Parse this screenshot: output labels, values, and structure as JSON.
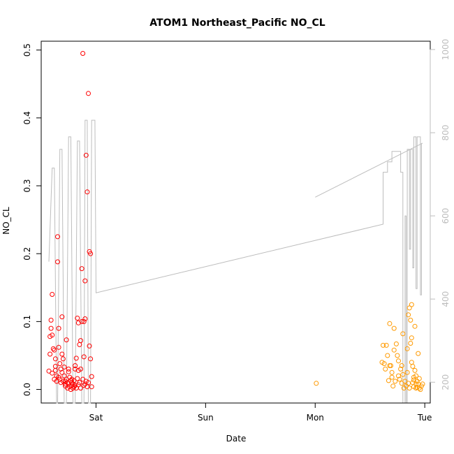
{
  "chart_data": {
    "type": "scatter",
    "title": "ATOM1 Northeast_Pacific NO_CL",
    "xlabel": "Date",
    "ylabel": "NO_CL",
    "x_ticks": [
      "Sat",
      "Sun",
      "Mon",
      "Tue"
    ],
    "x_tick_positions_days": [
      1,
      2,
      3,
      4
    ],
    "x_range_days": [
      0.5,
      4.05
    ],
    "ylim": [
      -0.02,
      0.513
    ],
    "y_ticks": [
      0.0,
      0.1,
      0.2,
      0.3,
      0.4,
      0.5
    ],
    "y_tick_labels": [
      "0.0",
      "0.1",
      "0.2",
      "0.3",
      "0.4",
      "0.5"
    ],
    "y2_lim_reversed": [
      1020,
      150
    ],
    "y2_ticks": [
      200,
      400,
      600,
      800,
      1000
    ],
    "grid": false,
    "series": [
      {
        "color": "#ff0000",
        "marker": "open-circle",
        "points": [
          [
            0.57,
            0.027
          ],
          [
            0.58,
            0.052
          ],
          [
            0.59,
            0.09
          ],
          [
            0.6,
            0.14
          ],
          [
            0.6,
            0.08
          ],
          [
            0.61,
            0.06
          ],
          [
            0.62,
            0.058
          ],
          [
            0.62,
            0.015
          ],
          [
            0.63,
            0.045
          ],
          [
            0.63,
            0.028
          ],
          [
            0.64,
            0.012
          ],
          [
            0.64,
            0.02
          ],
          [
            0.65,
            0.225
          ],
          [
            0.65,
            0.188
          ],
          [
            0.66,
            0.09
          ],
          [
            0.66,
            0.062
          ],
          [
            0.67,
            0.015
          ],
          [
            0.67,
            0.038
          ],
          [
            0.68,
            0.03
          ],
          [
            0.68,
            0.01
          ],
          [
            0.69,
            0.107
          ],
          [
            0.69,
            0.052
          ],
          [
            0.7,
            0.012
          ],
          [
            0.7,
            0.045
          ],
          [
            0.71,
            0.033
          ],
          [
            0.71,
            0.02
          ],
          [
            0.72,
            0.008
          ],
          [
            0.72,
            0.005
          ],
          [
            0.73,
            0.073
          ],
          [
            0.73,
            0.015
          ],
          [
            0.74,
            0.01
          ],
          [
            0.74,
            0.002
          ],
          [
            0.75,
            0.026
          ],
          [
            0.75,
            0.008
          ],
          [
            0.76,
            0.018
          ],
          [
            0.76,
            0.004
          ],
          [
            0.77,
            0.013
          ],
          [
            0.77,
            0.0
          ],
          [
            0.78,
            0.006
          ],
          [
            0.78,
            0.01
          ],
          [
            0.79,
            0.002
          ],
          [
            0.79,
            0.008
          ],
          [
            0.8,
            0.004
          ],
          [
            0.8,
            0.013
          ],
          [
            0.81,
            0.03
          ],
          [
            0.81,
            0.006
          ],
          [
            0.82,
            0.046
          ],
          [
            0.82,
            0.002
          ],
          [
            0.83,
            0.105
          ],
          [
            0.83,
            0.016
          ],
          [
            0.84,
            0.007
          ],
          [
            0.84,
            0.028
          ],
          [
            0.85,
            0.066
          ],
          [
            0.85,
            0.01
          ],
          [
            0.86,
            0.03
          ],
          [
            0.86,
            0.002
          ],
          [
            0.87,
            0.178
          ],
          [
            0.87,
            0.1
          ],
          [
            0.88,
            0.495
          ],
          [
            0.88,
            0.015
          ],
          [
            0.89,
            0.048
          ],
          [
            0.89,
            0.006
          ],
          [
            0.9,
            0.16
          ],
          [
            0.9,
            0.008
          ],
          [
            0.91,
            0.345
          ],
          [
            0.91,
            0.012
          ],
          [
            0.92,
            0.291
          ],
          [
            0.92,
            0.004
          ],
          [
            0.93,
            0.436
          ],
          [
            0.93,
            0.01
          ],
          [
            0.94,
            0.203
          ],
          [
            0.94,
            0.064
          ],
          [
            0.95,
            0.2
          ],
          [
            0.95,
            0.045
          ],
          [
            0.96,
            0.019
          ],
          [
            0.96,
            0.004
          ],
          [
            0.89,
            0.1
          ],
          [
            0.9,
            0.104
          ],
          [
            0.86,
            0.072
          ],
          [
            0.84,
            0.098
          ],
          [
            0.81,
            0.035
          ],
          [
            0.78,
            0.015
          ],
          [
            0.75,
            0.03
          ],
          [
            0.72,
            0.012
          ],
          [
            0.69,
            0.025
          ],
          [
            0.66,
            0.018
          ],
          [
            0.63,
            0.034
          ],
          [
            0.6,
            0.024
          ],
          [
            0.59,
            0.102
          ],
          [
            0.58,
            0.078
          ]
        ]
      },
      {
        "color": "#ff9a00",
        "marker": "open-circle",
        "points": [
          [
            3.01,
            0.009
          ],
          [
            3.61,
            0.04
          ],
          [
            3.62,
            0.065
          ],
          [
            3.63,
            0.038
          ],
          [
            3.64,
            0.03
          ],
          [
            3.65,
            0.065
          ],
          [
            3.66,
            0.05
          ],
          [
            3.67,
            0.013
          ],
          [
            3.68,
            0.097
          ],
          [
            3.69,
            0.035
          ],
          [
            3.7,
            0.025
          ],
          [
            3.71,
            0.005
          ],
          [
            3.72,
            0.09
          ],
          [
            3.73,
            0.012
          ],
          [
            3.74,
            0.067
          ],
          [
            3.75,
            0.05
          ],
          [
            3.76,
            0.02
          ],
          [
            3.77,
            0.015
          ],
          [
            3.78,
            0.03
          ],
          [
            3.79,
            0.009
          ],
          [
            3.8,
            0.082
          ],
          [
            3.81,
            0.002
          ],
          [
            3.82,
            0.012
          ],
          [
            3.83,
            0.005
          ],
          [
            3.84,
            0.06
          ],
          [
            3.85,
            0.009
          ],
          [
            3.86,
            0.12
          ],
          [
            3.86,
            0.002
          ],
          [
            3.87,
            0.068
          ],
          [
            3.87,
            0.102
          ],
          [
            3.88,
            0.125
          ],
          [
            3.88,
            0.04
          ],
          [
            3.89,
            0.034
          ],
          [
            3.89,
            0.01
          ],
          [
            3.9,
            0.018
          ],
          [
            3.9,
            0.004
          ],
          [
            3.91,
            0.093
          ],
          [
            3.91,
            0.028
          ],
          [
            3.92,
            0.008
          ],
          [
            3.92,
            0.002
          ],
          [
            3.93,
            0.012
          ],
          [
            3.93,
            0.003
          ],
          [
            3.94,
            0.053
          ],
          [
            3.94,
            0.008
          ],
          [
            3.95,
            0.016
          ],
          [
            3.95,
            0.002
          ],
          [
            3.96,
            0.0
          ],
          [
            3.97,
            0.005
          ],
          [
            3.98,
            0.008
          ],
          [
            3.68,
            0.035
          ],
          [
            3.72,
            0.058
          ],
          [
            3.76,
            0.042
          ],
          [
            3.8,
            0.022
          ],
          [
            3.84,
            0.025
          ],
          [
            3.88,
            0.076
          ],
          [
            3.92,
            0.02
          ],
          [
            3.85,
            0.11
          ],
          [
            3.9,
            0.014
          ],
          [
            3.79,
            0.035
          ],
          [
            3.7,
            0.018
          ]
        ]
      }
    ],
    "background_line": {
      "color": "#bdbdbd",
      "axis": "right",
      "segments": [
        [
          [
            0.57,
            490
          ],
          [
            0.6,
            715
          ],
          [
            0.62,
            715
          ],
          [
            0.64,
            150
          ],
          [
            0.65,
            150
          ],
          [
            0.67,
            760
          ],
          [
            0.69,
            760
          ],
          [
            0.71,
            150
          ],
          [
            0.73,
            150
          ],
          [
            0.75,
            790
          ],
          [
            0.77,
            790
          ],
          [
            0.79,
            150
          ],
          [
            0.81,
            150
          ],
          [
            0.83,
            780
          ],
          [
            0.85,
            780
          ],
          [
            0.87,
            150
          ],
          [
            0.89,
            150
          ],
          [
            0.9,
            830
          ],
          [
            0.92,
            830
          ],
          [
            0.93,
            150
          ],
          [
            0.95,
            150
          ],
          [
            0.96,
            830
          ],
          [
            0.99,
            830
          ],
          [
            1.0,
            415
          ],
          [
            3.62,
            580
          ],
          [
            3.62,
            705
          ],
          [
            3.66,
            705
          ],
          [
            3.66,
            730
          ],
          [
            3.7,
            730
          ],
          [
            3.7,
            755
          ],
          [
            3.78,
            755
          ],
          [
            3.78,
            705
          ],
          [
            3.8,
            705
          ],
          [
            3.8,
            150
          ],
          [
            3.82,
            150
          ],
          [
            3.82,
            600
          ],
          [
            3.83,
            600
          ],
          [
            3.83,
            150
          ],
          [
            3.84,
            150
          ],
          [
            3.84,
            760
          ],
          [
            3.86,
            760
          ],
          [
            3.86,
            520
          ],
          [
            3.87,
            520
          ],
          [
            3.87,
            760
          ],
          [
            3.89,
            760
          ],
          [
            3.89,
            475
          ],
          [
            3.9,
            475
          ],
          [
            3.9,
            790
          ],
          [
            3.92,
            790
          ],
          [
            3.92,
            425
          ],
          [
            3.93,
            425
          ],
          [
            3.93,
            790
          ],
          [
            3.96,
            790
          ],
          [
            3.96,
            410
          ],
          [
            3.97,
            410
          ],
          [
            3.97,
            775
          ]
        ],
        [
          [
            3.0,
            645
          ],
          [
            3.98,
            775
          ]
        ]
      ]
    }
  }
}
